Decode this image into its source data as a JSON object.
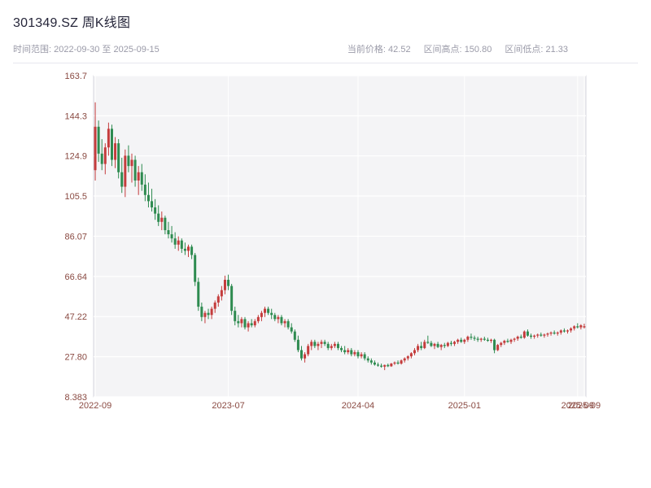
{
  "header": {
    "title": "301349.SZ 周K线图",
    "range_label": "时间范围: 2022-09-30 至 2025-09-15",
    "stats": [
      {
        "label": "当前价格:",
        "value": "42.52"
      },
      {
        "label": "区间高点:",
        "value": "150.80"
      },
      {
        "label": "区间低点:",
        "value": "21.33"
      }
    ]
  },
  "chart_data": {
    "type": "candlestick",
    "symbol": "301349.SZ",
    "interval": "weekly",
    "title": "301349.SZ 周K线图",
    "start": "2022-09-30",
    "end": "2025-09-15",
    "current_price": 42.52,
    "range_high": 150.8,
    "range_low": 21.33,
    "y_domain": [
      8.383,
      163.7
    ],
    "y_ticks": [
      "163.7",
      "144.3",
      "124.9",
      "105.5",
      "86.07",
      "66.64",
      "47.22",
      "27.80",
      "8.383"
    ],
    "x_ticks": [
      {
        "index": 0,
        "label": "2022-09"
      },
      {
        "index": 40,
        "label": "2023-07"
      },
      {
        "index": 79,
        "label": "2024-04"
      },
      {
        "index": 111,
        "label": "2025-01"
      },
      {
        "index": 145,
        "label": "2025-09"
      },
      {
        "index": 147,
        "label": "2025-09"
      }
    ],
    "colors": {
      "up": "#c43c3c",
      "down": "#2e8b50",
      "grid": "#ffffff",
      "plot_bg": "#f4f4f6",
      "border": "#d6d6de",
      "tick_text": "#8a4a42"
    },
    "candles": [
      [
        118,
        150.8,
        113,
        139
      ],
      [
        139,
        142,
        122,
        126
      ],
      [
        126,
        133,
        118,
        121
      ],
      [
        121,
        131,
        116,
        129
      ],
      [
        129,
        141,
        125,
        138
      ],
      [
        138,
        140,
        120,
        123
      ],
      [
        123,
        134,
        119,
        131
      ],
      [
        131,
        133,
        114,
        117
      ],
      [
        117,
        124,
        107,
        110
      ],
      [
        110,
        128,
        105,
        125
      ],
      [
        125,
        130,
        117,
        120
      ],
      [
        120,
        126,
        112,
        123
      ],
      [
        123,
        125,
        110,
        113
      ],
      [
        113,
        120,
        106,
        117
      ],
      [
        117,
        121,
        108,
        111
      ],
      [
        111,
        116,
        103,
        106
      ],
      [
        106,
        112,
        100,
        103
      ],
      [
        103,
        109,
        98,
        100
      ],
      [
        100,
        104,
        94,
        97
      ],
      [
        97,
        101,
        91,
        93
      ],
      [
        93,
        98,
        89,
        95
      ],
      [
        95,
        96,
        87,
        89
      ],
      [
        89,
        93,
        85,
        87
      ],
      [
        87,
        91,
        83,
        85
      ],
      [
        85,
        88,
        80,
        82
      ],
      [
        82,
        86,
        79,
        84
      ],
      [
        84,
        85,
        78,
        80
      ],
      [
        80,
        83,
        77,
        79
      ],
      [
        79,
        82,
        76,
        81
      ],
      [
        81,
        82,
        75,
        77
      ],
      [
        77,
        78,
        62,
        64
      ],
      [
        64,
        66,
        50,
        52
      ],
      [
        52,
        54,
        45,
        47
      ],
      [
        47,
        50,
        44,
        49
      ],
      [
        49,
        51,
        46,
        48
      ],
      [
        48,
        52,
        46,
        51
      ],
      [
        51,
        55,
        49,
        54
      ],
      [
        54,
        58,
        52,
        57
      ],
      [
        57,
        62,
        55,
        60
      ],
      [
        60,
        67,
        58,
        65
      ],
      [
        65,
        67.5,
        60,
        62
      ],
      [
        62,
        63,
        48,
        50
      ],
      [
        50,
        52,
        43,
        45
      ],
      [
        45,
        48,
        42,
        44
      ],
      [
        44,
        47,
        42,
        46
      ],
      [
        46,
        47,
        41,
        42
      ],
      [
        42,
        45,
        40,
        44
      ],
      [
        44,
        46,
        42,
        43
      ],
      [
        43,
        46,
        42,
        45
      ],
      [
        45,
        48,
        44,
        47
      ],
      [
        47,
        50,
        45,
        49
      ],
      [
        49,
        52,
        47,
        51
      ],
      [
        51,
        52,
        48,
        49
      ],
      [
        49,
        51,
        46,
        48
      ],
      [
        48,
        49,
        45,
        46
      ],
      [
        46,
        48,
        44,
        47
      ],
      [
        47,
        48,
        43,
        44
      ],
      [
        44,
        46,
        42,
        45
      ],
      [
        45,
        46,
        41,
        42
      ],
      [
        42,
        44,
        39,
        40
      ],
      [
        40,
        41,
        35,
        36
      ],
      [
        36,
        38,
        30,
        31
      ],
      [
        31,
        33,
        26,
        27
      ],
      [
        27,
        30,
        25,
        29
      ],
      [
        29,
        34,
        28,
        33
      ],
      [
        33,
        36,
        31,
        35
      ],
      [
        35,
        36,
        32,
        33
      ],
      [
        33,
        35,
        31,
        34
      ],
      [
        34,
        36,
        32,
        35
      ],
      [
        35,
        36,
        33,
        34
      ],
      [
        34,
        35,
        31,
        32
      ],
      [
        32,
        34,
        31,
        33
      ],
      [
        33,
        35,
        32,
        34
      ],
      [
        34,
        35,
        31,
        32
      ],
      [
        32,
        33,
        30,
        31
      ],
      [
        31,
        33,
        29,
        30
      ],
      [
        30,
        32,
        29,
        31
      ],
      [
        31,
        32,
        28,
        29
      ],
      [
        29,
        31,
        28,
        30
      ],
      [
        30,
        31,
        27,
        28
      ],
      [
        28,
        30,
        27,
        29
      ],
      [
        29,
        30,
        26,
        27
      ],
      [
        27,
        28,
        25,
        26
      ],
      [
        26,
        27,
        24,
        25
      ],
      [
        25,
        26,
        23.5,
        24
      ],
      [
        24,
        25,
        23,
        23.5
      ],
      [
        23.5,
        24.5,
        22.5,
        23
      ],
      [
        23,
        24,
        21.33,
        23.8
      ],
      [
        23.8,
        24.5,
        22.8,
        23.2
      ],
      [
        23.2,
        24.8,
        22.9,
        24.5
      ],
      [
        24.5,
        25.5,
        23.8,
        25
      ],
      [
        25,
        26,
        24,
        24.5
      ],
      [
        24.5,
        26.5,
        24,
        26
      ],
      [
        26,
        27.5,
        25,
        27
      ],
      [
        27,
        28.5,
        26,
        28
      ],
      [
        28,
        30,
        27,
        29.5
      ],
      [
        29.5,
        32,
        28.5,
        31
      ],
      [
        31,
        34,
        30,
        33
      ],
      [
        33,
        35,
        31,
        32
      ],
      [
        32,
        36,
        31.5,
        35
      ],
      [
        35,
        38,
        34,
        34.5
      ],
      [
        34.5,
        35.5,
        32.5,
        33
      ],
      [
        33,
        34.5,
        31.5,
        34
      ],
      [
        34,
        35,
        32,
        32.5
      ],
      [
        32.5,
        34,
        31,
        33.5
      ],
      [
        33.5,
        34.5,
        32,
        33
      ],
      [
        33,
        35,
        32.5,
        34.5
      ],
      [
        34.5,
        35.5,
        33,
        34
      ],
      [
        34,
        35.5,
        33,
        35
      ],
      [
        35,
        36.5,
        34,
        36
      ],
      [
        36,
        37,
        34.5,
        35
      ],
      [
        35,
        36.5,
        34,
        36
      ],
      [
        36,
        38,
        35,
        37.5
      ],
      [
        37.5,
        39,
        36,
        37
      ],
      [
        37,
        38,
        35.5,
        36.5
      ],
      [
        36.5,
        37.5,
        35,
        36
      ],
      [
        36,
        37,
        35,
        36.5
      ],
      [
        36.5,
        37.5,
        35.5,
        36
      ],
      [
        36,
        37,
        35,
        35.5
      ],
      [
        35.5,
        36.5,
        34.5,
        36
      ],
      [
        36,
        36.5,
        29.5,
        31
      ],
      [
        31,
        34,
        30.5,
        33.5
      ],
      [
        33.5,
        35,
        32.5,
        34.5
      ],
      [
        34.5,
        36,
        33.5,
        35.5
      ],
      [
        35.5,
        36.5,
        34.5,
        35
      ],
      [
        35,
        36.5,
        34,
        36
      ],
      [
        36,
        37,
        35,
        36.5
      ],
      [
        36.5,
        38,
        35.5,
        37.5
      ],
      [
        37.5,
        38.5,
        36.5,
        37
      ],
      [
        37,
        40.5,
        36.5,
        40
      ],
      [
        40,
        41,
        37.5,
        38
      ],
      [
        38,
        39,
        36.5,
        37.5
      ],
      [
        37.5,
        38.5,
        36.5,
        38
      ],
      [
        38,
        39,
        37,
        38.5
      ],
      [
        38.5,
        39.5,
        37.5,
        38
      ],
      [
        38,
        39,
        37,
        38.5
      ],
      [
        38.5,
        39.5,
        37.5,
        39
      ],
      [
        39,
        40,
        38,
        39.5
      ],
      [
        39.5,
        40.5,
        38.5,
        39
      ],
      [
        39,
        40,
        38,
        39.5
      ],
      [
        39.5,
        41,
        38.5,
        40.5
      ],
      [
        40.5,
        41.5,
        39.5,
        40
      ],
      [
        40,
        41,
        39,
        40.5
      ],
      [
        40.5,
        42,
        39.5,
        41.5
      ],
      [
        41.5,
        43,
        40.5,
        42.5
      ],
      [
        42.5,
        44,
        41.5,
        42
      ],
      [
        42,
        43.5,
        41,
        43
      ],
      [
        42,
        43.8,
        41.5,
        42.52
      ]
    ]
  }
}
